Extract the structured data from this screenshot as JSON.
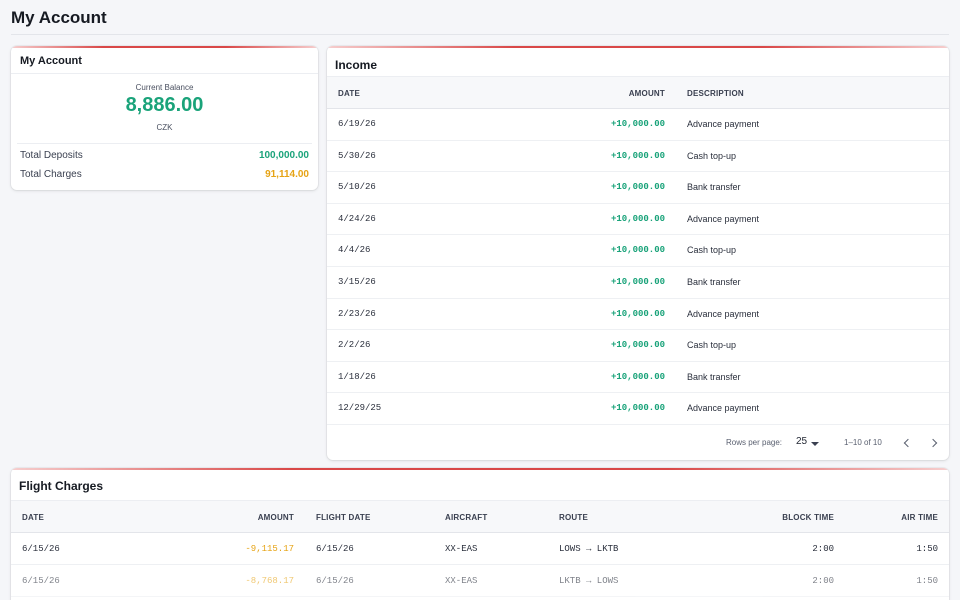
{
  "page": {
    "title": "My Account"
  },
  "account": {
    "title": "My Account",
    "balance_label": "Current Balance",
    "balance": "8,886.00",
    "currency": "CZK",
    "deposits_label": "Total Deposits",
    "deposits": "100,000.00",
    "charges_label": "Total Charges",
    "charges": "91,114.00"
  },
  "income": {
    "title": "Income",
    "columns": {
      "date": "DATE",
      "amount": "AMOUNT",
      "description": "DESCRIPTION"
    },
    "rows": [
      {
        "date": "6/19/26",
        "amount": "+10,000.00",
        "description": "Advance payment"
      },
      {
        "date": "5/30/26",
        "amount": "+10,000.00",
        "description": "Cash top-up"
      },
      {
        "date": "5/10/26",
        "amount": "+10,000.00",
        "description": "Bank transfer"
      },
      {
        "date": "4/24/26",
        "amount": "+10,000.00",
        "description": "Advance payment"
      },
      {
        "date": "4/4/26",
        "amount": "+10,000.00",
        "description": "Cash top-up"
      },
      {
        "date": "3/15/26",
        "amount": "+10,000.00",
        "description": "Bank transfer"
      },
      {
        "date": "2/23/26",
        "amount": "+10,000.00",
        "description": "Advance payment"
      },
      {
        "date": "2/2/26",
        "amount": "+10,000.00",
        "description": "Cash top-up"
      },
      {
        "date": "1/18/26",
        "amount": "+10,000.00",
        "description": "Bank transfer"
      },
      {
        "date": "12/29/25",
        "amount": "+10,000.00",
        "description": "Advance payment"
      }
    ],
    "pagination": {
      "rows_per_page_label": "Rows per page:",
      "rows_per_page": "25",
      "range": "1–10 of 10",
      "prev_icon": "chevron-left-icon",
      "next_icon": "chevron-right-icon"
    }
  },
  "flights": {
    "title": "Flight Charges",
    "columns": {
      "date": "DATE",
      "amount": "AMOUNT",
      "flight_date": "FLIGHT DATE",
      "aircraft": "AIRCRAFT",
      "route": "ROUTE",
      "block_time": "BLOCK TIME",
      "air_time": "AIR TIME"
    },
    "rows": [
      {
        "date": "6/15/26",
        "amount": "-9,115.17",
        "flight_date": "6/15/26",
        "aircraft": "XX-EAS",
        "route": "LOWS → LKTB",
        "block_time": "2:00",
        "air_time": "1:50"
      },
      {
        "date": "6/15/26",
        "amount": "-8,768.17",
        "flight_date": "6/15/26",
        "aircraft": "XX-EAS",
        "route": "LKTB → LOWS",
        "block_time": "2:00",
        "air_time": "1:50"
      }
    ]
  },
  "colors": {
    "positive": "#1aa37a",
    "negative": "#e6a314",
    "accent": "#d94848"
  }
}
